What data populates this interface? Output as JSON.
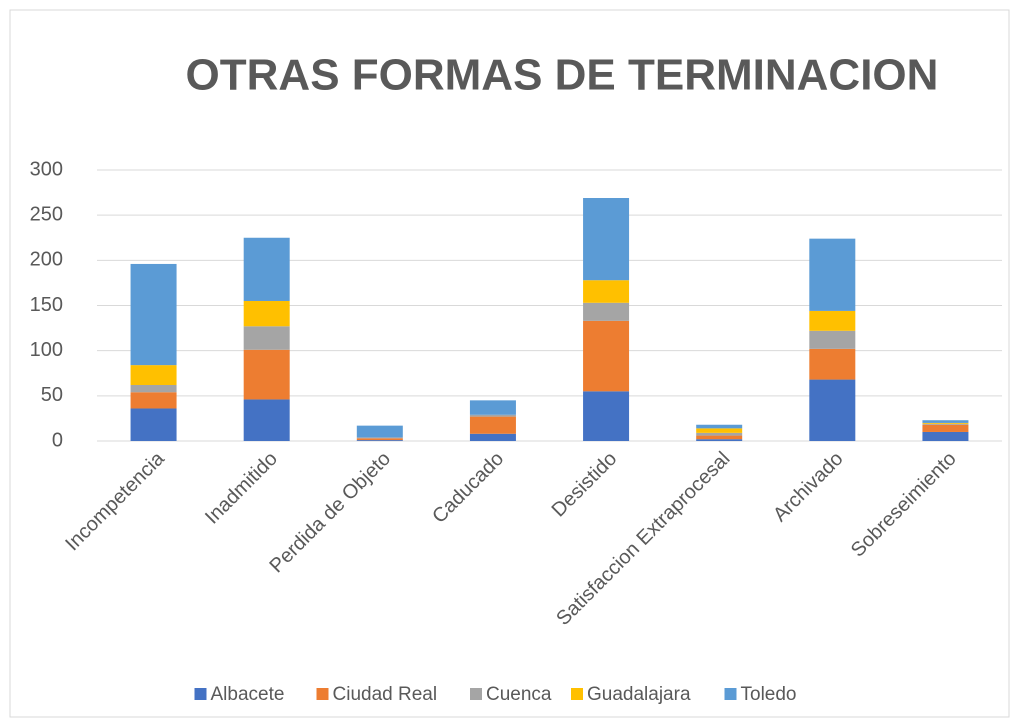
{
  "chart_data": {
    "type": "stacked_bar",
    "title": "OTRAS FORMAS DE TERMINACION",
    "categories": [
      "Incompetencia",
      "Inadmitido",
      "Perdida de Objeto",
      "Caducado",
      "Desistido",
      "Satisfaccion Extraprocesal",
      "Archivado",
      "Sobreseimiento"
    ],
    "series": [
      {
        "name": "Albacete",
        "color": "#4472c4",
        "values": [
          36,
          46,
          1,
          8,
          55,
          2,
          68,
          10
        ]
      },
      {
        "name": "Ciudad Real",
        "color": "#ed7d31",
        "values": [
          18,
          55,
          2,
          19,
          78,
          4,
          34,
          8
        ]
      },
      {
        "name": "Cuenca",
        "color": "#a5a5a5",
        "values": [
          8,
          26,
          1,
          2,
          20,
          3,
          20,
          1
        ]
      },
      {
        "name": "Guadalajara",
        "color": "#ffc000",
        "values": [
          22,
          28,
          0,
          0,
          25,
          5,
          22,
          1
        ]
      },
      {
        "name": "Toledo",
        "color": "#5b9bd5",
        "values": [
          112,
          70,
          13,
          16,
          91,
          4,
          80,
          3
        ]
      }
    ],
    "ylim": [
      0,
      300
    ],
    "yticks": [
      0,
      50,
      100,
      150,
      200,
      250,
      300
    ],
    "grid": true,
    "legend": "bottom"
  }
}
